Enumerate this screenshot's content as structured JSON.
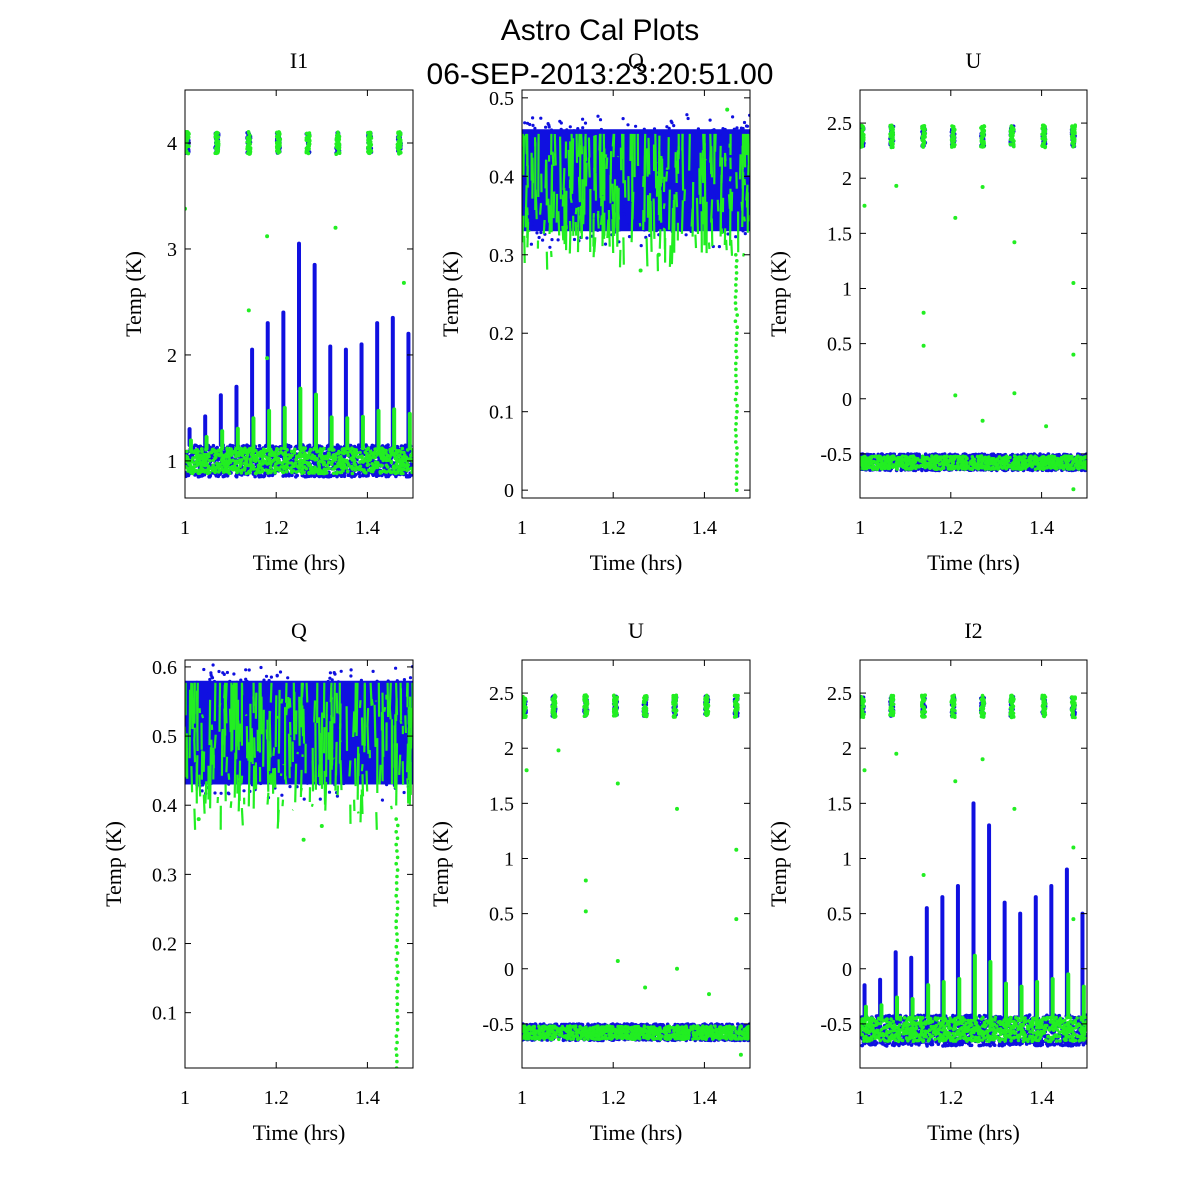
{
  "figure": {
    "title": "Astro Cal Plots",
    "subtitle": "06-SEP-2013:23:20:51.00"
  },
  "colors": {
    "series_blue": "#1010e0",
    "series_green": "#22ee22"
  },
  "chart_data": [
    {
      "type": "scatter",
      "title": "I1",
      "xlabel": "Time (hrs)",
      "ylabel": "Temp (K)",
      "xlim": [
        1,
        1.5
      ],
      "ylim": [
        0.65,
        4.5
      ],
      "xticks": [
        "1",
        "1.2",
        "1.4"
      ],
      "yticks": [
        "1",
        "2",
        "3",
        "4"
      ],
      "profile": "spiky_band",
      "blue": {
        "low": 0.85,
        "high": 1.15
      },
      "green": {
        "low": 0.88,
        "high": 1.12
      },
      "cluster_level": 4.0,
      "spike_peaks": [
        1.3,
        1.42,
        1.62,
        1.7,
        2.05,
        2.3,
        2.4,
        3.05,
        2.85,
        2.08,
        2.05,
        2.1,
        2.3,
        2.35,
        2.2
      ],
      "outliers": [
        [
          1.0,
          3.38
        ],
        [
          1.14,
          2.42
        ],
        [
          1.18,
          1.97
        ],
        [
          1.26,
          1.12
        ],
        [
          1.33,
          3.2
        ],
        [
          1.18,
          3.12
        ],
        [
          1.48,
          2.68
        ]
      ]
    },
    {
      "type": "scatter",
      "title": "Q",
      "xlabel": "Time (hrs)",
      "ylabel": "Temp (K)",
      "xlim": [
        1,
        1.5
      ],
      "ylim": [
        -0.01,
        0.51
      ],
      "xticks": [
        "1",
        "1.2",
        "1.4"
      ],
      "yticks": [
        "0",
        "0.1",
        "0.2",
        "0.3",
        "0.4",
        "0.5"
      ],
      "profile": "thick_band",
      "blue": {
        "low": 0.33,
        "high": 0.46
      },
      "green": {
        "low": 0.3,
        "high": 0.44
      },
      "tail": {
        "x": 1.47,
        "from": 0.3,
        "to": 0.0
      },
      "outliers": [
        [
          1.45,
          0.485
        ],
        [
          1.26,
          0.28
        ],
        [
          1.3,
          0.3
        ]
      ]
    },
    {
      "type": "scatter",
      "title": "U",
      "xlabel": "Time (hrs)",
      "ylabel": "Temp (K)",
      "xlim": [
        1,
        1.5
      ],
      "ylim": [
        -0.9,
        2.8
      ],
      "xticks": [
        "1",
        "1.2",
        "1.4"
      ],
      "yticks": [
        "-0.5",
        "0",
        "0.5",
        "1",
        "1.5",
        "2",
        "2.5"
      ],
      "profile": "flat_band",
      "blue": {
        "low": -0.65,
        "high": -0.5
      },
      "green": {
        "low": -0.64,
        "high": -0.52
      },
      "cluster_level": 2.38,
      "outliers": [
        [
          1.01,
          1.75
        ],
        [
          1.08,
          1.93
        ],
        [
          1.14,
          0.78
        ],
        [
          1.14,
          0.48
        ],
        [
          1.21,
          1.64
        ],
        [
          1.21,
          0.03
        ],
        [
          1.27,
          1.92
        ],
        [
          1.27,
          -0.2
        ],
        [
          1.34,
          1.42
        ],
        [
          1.34,
          0.05
        ],
        [
          1.41,
          -0.25
        ],
        [
          1.47,
          1.05
        ],
        [
          1.47,
          0.4
        ],
        [
          1.47,
          -0.82
        ]
      ]
    },
    {
      "type": "scatter",
      "title": "Q",
      "xlabel": "Time (hrs)",
      "ylabel": "Temp (K)",
      "xlim": [
        1,
        1.5
      ],
      "ylim": [
        0.02,
        0.61
      ],
      "xticks": [
        "1",
        "1.2",
        "1.4"
      ],
      "yticks": [
        "0.1",
        "0.2",
        "0.3",
        "0.4",
        "0.5",
        "0.6"
      ],
      "profile": "thick_band",
      "blue": {
        "low": 0.43,
        "high": 0.58
      },
      "green": {
        "low": 0.39,
        "high": 0.56
      },
      "tail": {
        "x": 1.465,
        "from": 0.38,
        "to": 0.02
      },
      "outliers": [
        [
          1.26,
          0.35
        ],
        [
          1.3,
          0.37
        ],
        [
          1.03,
          0.38
        ]
      ]
    },
    {
      "type": "scatter",
      "title": "U",
      "xlabel": "Time (hrs)",
      "ylabel": "Temp (K)",
      "xlim": [
        1,
        1.5
      ],
      "ylim": [
        -0.9,
        2.8
      ],
      "xticks": [
        "1",
        "1.2",
        "1.4"
      ],
      "yticks": [
        "-0.5",
        "0",
        "0.5",
        "1",
        "1.5",
        "2",
        "2.5"
      ],
      "profile": "flat_band",
      "blue": {
        "low": -0.65,
        "high": -0.5
      },
      "green": {
        "low": -0.64,
        "high": -0.52
      },
      "cluster_level": 2.38,
      "outliers": [
        [
          1.01,
          1.8
        ],
        [
          1.08,
          1.98
        ],
        [
          1.14,
          0.8
        ],
        [
          1.14,
          0.52
        ],
        [
          1.21,
          1.68
        ],
        [
          1.21,
          0.07
        ],
        [
          1.27,
          -0.17
        ],
        [
          1.34,
          1.45
        ],
        [
          1.34,
          0.0
        ],
        [
          1.41,
          -0.23
        ],
        [
          1.47,
          1.08
        ],
        [
          1.47,
          0.45
        ],
        [
          1.48,
          -0.78
        ]
      ]
    },
    {
      "type": "scatter",
      "title": "I2",
      "xlabel": "Time (hrs)",
      "ylabel": "Temp (K)",
      "xlim": [
        1,
        1.5
      ],
      "ylim": [
        -0.9,
        2.8
      ],
      "xticks": [
        "1",
        "1.2",
        "1.4"
      ],
      "yticks": [
        "-0.5",
        "0",
        "0.5",
        "1",
        "1.5",
        "2",
        "2.5"
      ],
      "profile": "spiky_band",
      "blue": {
        "low": -0.7,
        "high": -0.42
      },
      "green": {
        "low": -0.66,
        "high": -0.44
      },
      "cluster_level": 2.38,
      "spike_peaks": [
        -0.15,
        -0.1,
        0.15,
        0.1,
        0.55,
        0.65,
        0.75,
        1.5,
        1.3,
        0.6,
        0.5,
        0.65,
        0.75,
        0.9,
        0.5
      ],
      "outliers": [
        [
          1.01,
          1.8
        ],
        [
          1.08,
          1.95
        ],
        [
          1.14,
          0.85
        ],
        [
          1.21,
          1.7
        ],
        [
          1.27,
          1.9
        ],
        [
          1.34,
          1.45
        ],
        [
          1.47,
          1.1
        ],
        [
          1.47,
          0.45
        ]
      ]
    }
  ]
}
